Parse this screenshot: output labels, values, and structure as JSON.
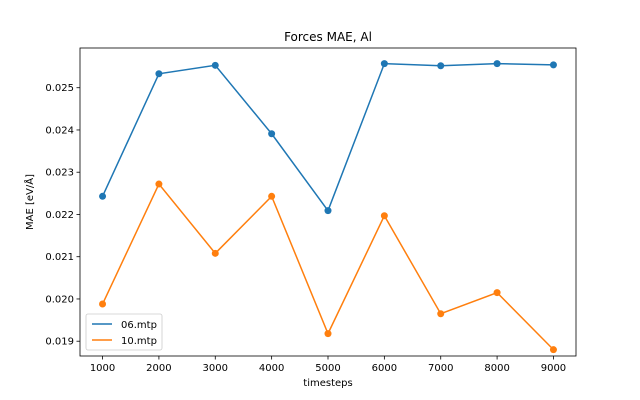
{
  "chart_data": {
    "type": "line",
    "title": "Forces MAE, Al",
    "xlabel": "timesteps",
    "ylabel": "MAE [eV/Å]",
    "x": [
      1000,
      2000,
      3000,
      4000,
      5000,
      6000,
      7000,
      8000,
      9000
    ],
    "xticks": [
      1000,
      2000,
      3000,
      4000,
      5000,
      6000,
      7000,
      8000,
      9000
    ],
    "xlim": [
      600,
      9400
    ],
    "yticks": [
      0.019,
      0.02,
      0.021,
      0.022,
      0.023,
      0.024,
      0.025
    ],
    "ytick_labels": [
      "0.019",
      "0.020",
      "0.021",
      "0.022",
      "0.023",
      "0.024",
      "0.025"
    ],
    "ylim": [
      0.01865,
      0.02594
    ],
    "grid": false,
    "legend_position": "lower-left",
    "series": [
      {
        "name": "06.mtp",
        "color": "#1f77b4",
        "values": [
          0.02243,
          0.02533,
          0.02553,
          0.02391,
          0.02209,
          0.02557,
          0.02552,
          0.02557,
          0.02554
        ]
      },
      {
        "name": "10.mtp",
        "color": "#ff7f0e",
        "values": [
          0.01988,
          0.02272,
          0.02108,
          0.02243,
          0.01918,
          0.02197,
          0.01965,
          0.02015,
          0.0188
        ]
      }
    ]
  }
}
